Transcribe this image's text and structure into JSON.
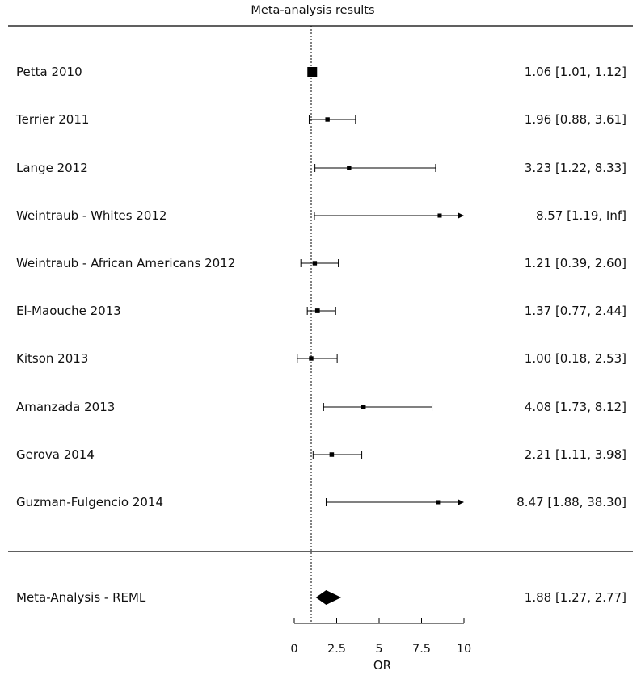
{
  "chart_data": {
    "type": "forest",
    "title": "Meta-analysis results",
    "xlabel": "OR",
    "xlim": [
      0,
      10
    ],
    "x_ticks": [
      0,
      2.5,
      5,
      7.5,
      10
    ],
    "x_tick_labels": [
      "0",
      "2.5",
      "5",
      "7.5",
      "10"
    ],
    "reference_line": 1,
    "studies": [
      {
        "label": "Petta 2010",
        "or": 1.06,
        "lower": 1.01,
        "upper": 1.12,
        "ci_text": "1.06 [1.01, 1.12]"
      },
      {
        "label": "Terrier 2011",
        "or": 1.96,
        "lower": 0.88,
        "upper": 3.61,
        "ci_text": "1.96 [0.88, 3.61]"
      },
      {
        "label": "Lange 2012",
        "or": 3.23,
        "lower": 1.22,
        "upper": 8.33,
        "ci_text": "3.23 [1.22, 8.33]"
      },
      {
        "label": "Weintraub - Whites 2012",
        "or": 8.57,
        "lower": 1.19,
        "upper": "Inf",
        "ci_text": "8.57 [1.19, Inf]"
      },
      {
        "label": "Weintraub - African Americans 2012",
        "or": 1.21,
        "lower": 0.39,
        "upper": 2.6,
        "ci_text": "1.21 [0.39, 2.60]"
      },
      {
        "label": "El-Maouche 2013",
        "or": 1.37,
        "lower": 0.77,
        "upper": 2.44,
        "ci_text": "1.37 [0.77, 2.44]"
      },
      {
        "label": "Kitson 2013",
        "or": 1.0,
        "lower": 0.18,
        "upper": 2.53,
        "ci_text": "1.00 [0.18, 2.53]"
      },
      {
        "label": "Amanzada 2013",
        "or": 4.08,
        "lower": 1.73,
        "upper": 8.12,
        "ci_text": "4.08 [1.73, 8.12]"
      },
      {
        "label": "Gerova 2014",
        "or": 2.21,
        "lower": 1.11,
        "upper": 3.98,
        "ci_text": "2.21 [1.11, 3.98]"
      },
      {
        "label": "Guzman-Fulgencio 2014",
        "or": 8.47,
        "lower": 1.88,
        "upper": 38.3,
        "ci_text": "8.47 [1.88, 38.30]"
      }
    ],
    "summary": {
      "label": "Meta-Analysis - REML",
      "or": 1.88,
      "lower": 1.27,
      "upper": 2.77,
      "ci_text": "1.88 [1.27, 2.77]"
    }
  }
}
